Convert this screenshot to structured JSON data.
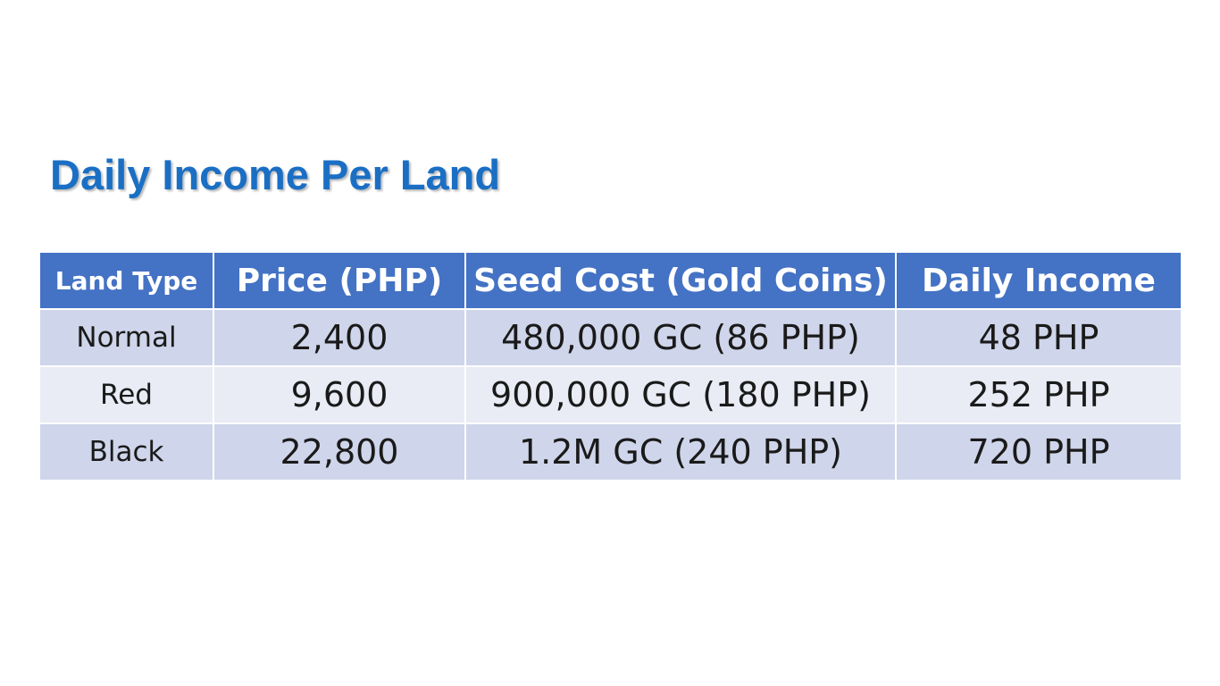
{
  "title": "Daily Income Per Land",
  "table": {
    "headers": [
      "Land Type",
      "Price (PHP)",
      "Seed Cost (Gold Coins)",
      "Daily Income"
    ],
    "rows": [
      [
        "Normal",
        "2,400",
        "480,000 GC (86 PHP)",
        "48 PHP"
      ],
      [
        "Red",
        "9,600",
        "900,000 GC (180 PHP)",
        "252 PHP"
      ],
      [
        "Black",
        "22,800",
        "1.2M GC (240 PHP)",
        "720 PHP"
      ]
    ]
  },
  "colors": {
    "title": "#1a6fc4",
    "header_bg": "#4472c4",
    "row_band_dark": "#cfd5ea",
    "row_band_light": "#e9ebf5"
  }
}
